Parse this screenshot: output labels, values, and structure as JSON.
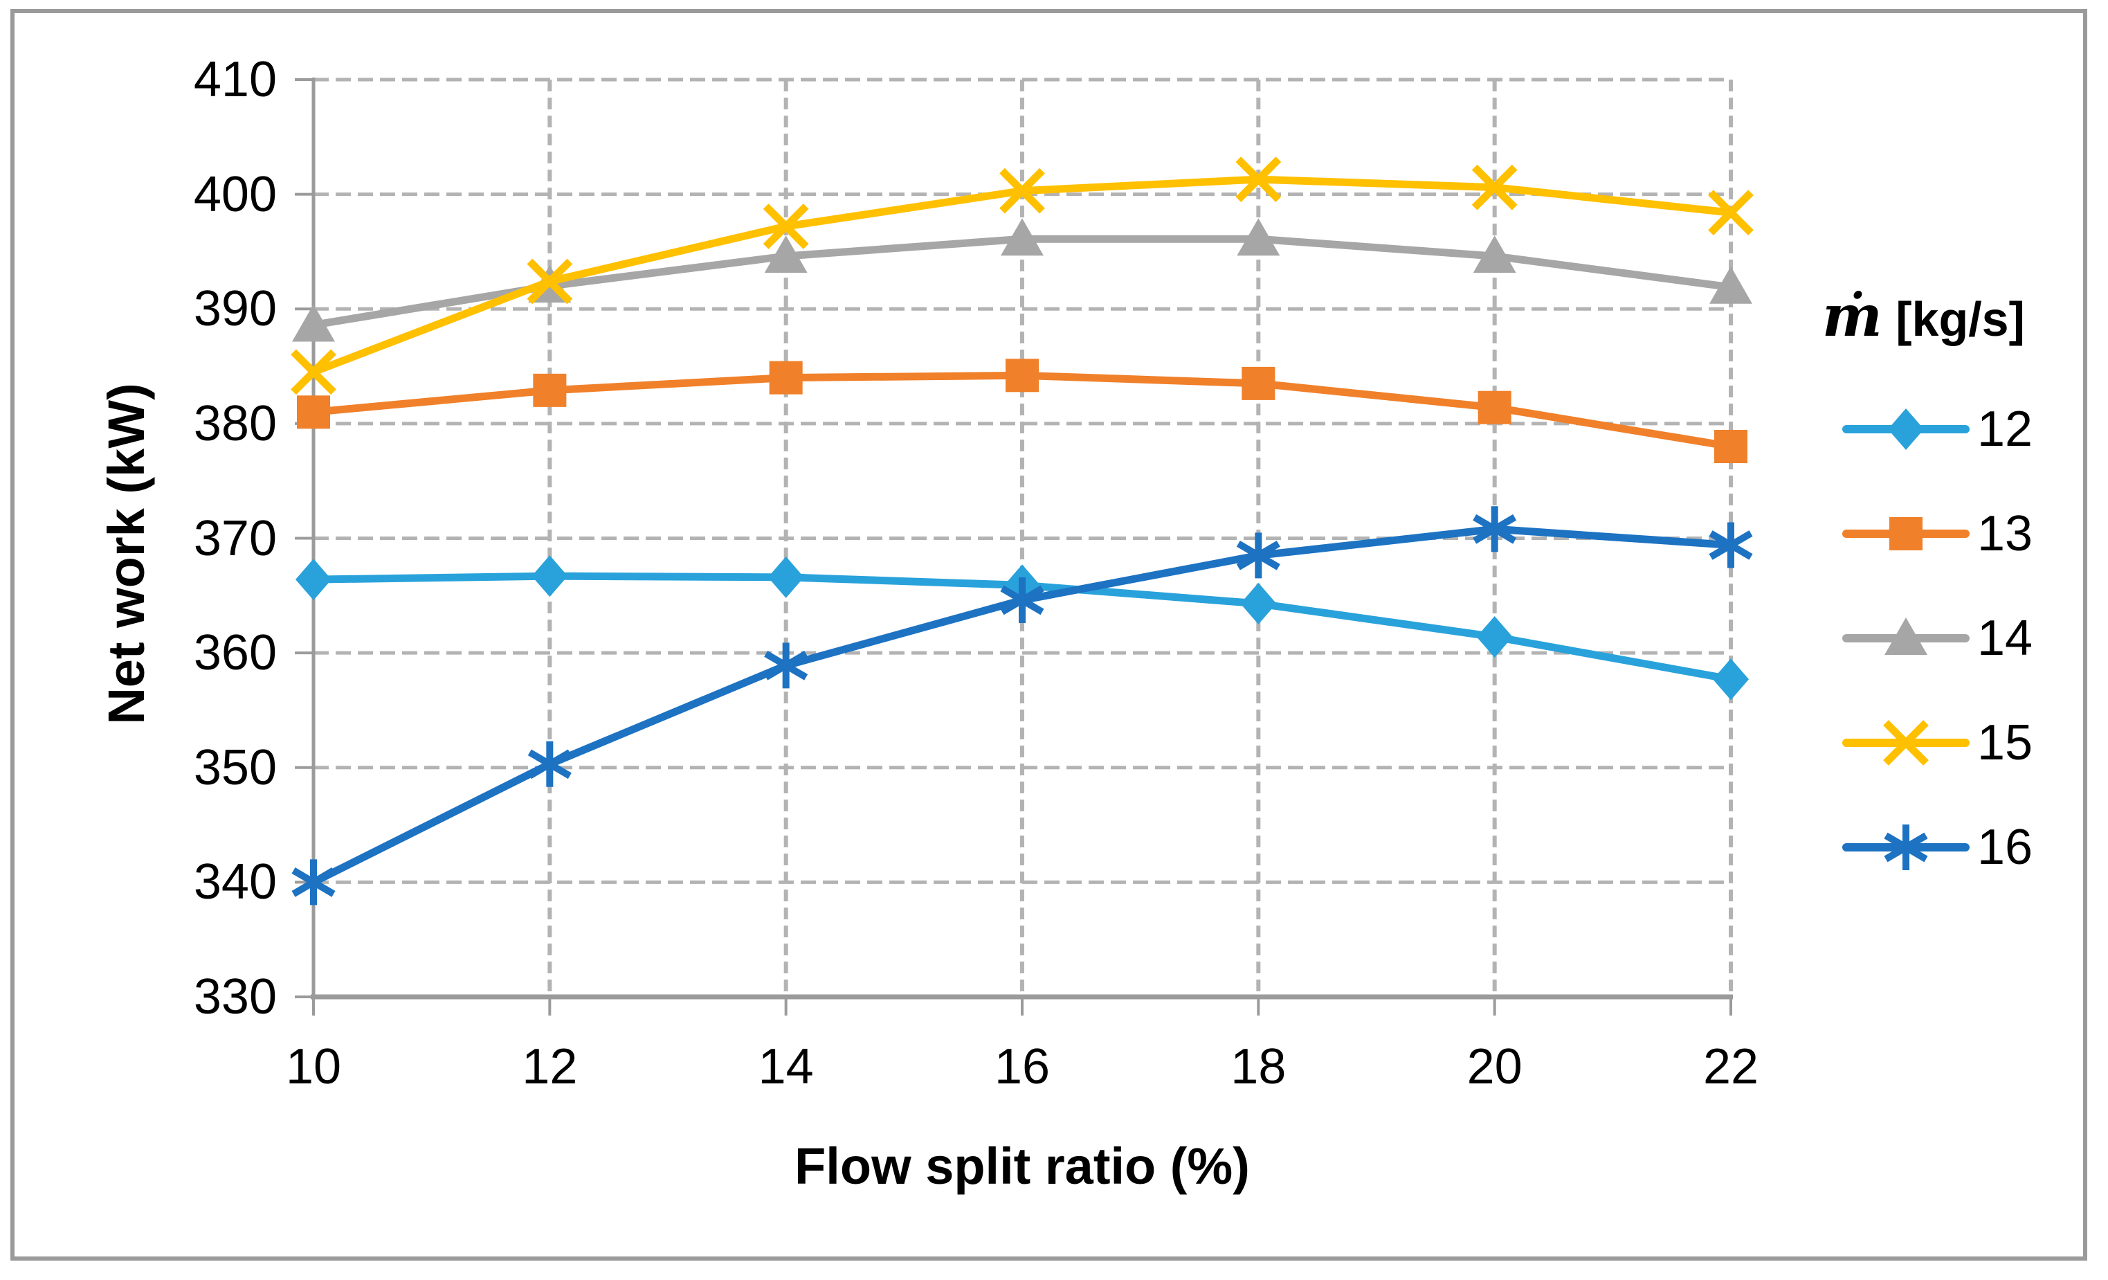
{
  "figure": {
    "background": "#ffffff",
    "border_color": "#9a9a9a",
    "axis_color": "#9b9b9b",
    "gridline_color": "#b3b3b3",
    "text_color": "#000000"
  },
  "chart_data": {
    "type": "line",
    "title": "",
    "xlabel": "Flow split ratio (%)",
    "ylabel": "Net work (kW)",
    "xlim": [
      10,
      22
    ],
    "ylim": [
      330,
      410
    ],
    "x_tick_step": 2,
    "y_tick_step": 10,
    "grid": "dashed-both",
    "legend_position": "right",
    "x": [
      10,
      12,
      14,
      16,
      18,
      20,
      22
    ],
    "series": [
      {
        "name": "12",
        "color": "#29a2db",
        "marker": "diamond",
        "values": [
          366.4,
          366.7,
          366.6,
          365.9,
          364.3,
          361.4,
          357.7
        ]
      },
      {
        "name": "13",
        "color": "#f0802a",
        "marker": "square",
        "values": [
          381.0,
          382.9,
          384.0,
          384.2,
          383.5,
          381.4,
          378.0
        ]
      },
      {
        "name": "14",
        "color": "#a6a6a6",
        "marker": "triangle",
        "values": [
          388.6,
          392.0,
          394.6,
          396.1,
          396.1,
          394.6,
          391.9
        ]
      },
      {
        "name": "15",
        "color": "#ffc000",
        "marker": "x",
        "values": [
          384.5,
          392.4,
          397.2,
          400.3,
          401.3,
          400.6,
          398.4
        ]
      },
      {
        "name": "16",
        "color": "#1d72c2",
        "marker": "asterisk",
        "values": [
          340.0,
          350.3,
          358.9,
          364.6,
          368.5,
          370.8,
          369.4
        ]
      }
    ],
    "x_tick_labels": [
      "10",
      "12",
      "14",
      "16",
      "18",
      "20",
      "22"
    ],
    "y_tick_labels": [
      "410",
      "400",
      "390",
      "380",
      "370",
      "360",
      "350",
      "340",
      "330"
    ]
  },
  "legend": {
    "title_mdot": "ṁ",
    "title_unit": " [kg/s]",
    "entries": [
      "12",
      "13",
      "14",
      "15",
      "16"
    ]
  }
}
